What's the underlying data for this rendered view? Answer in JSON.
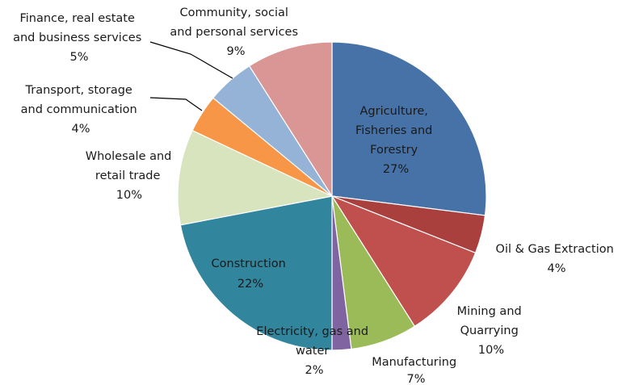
{
  "chart_data": {
    "type": "pie",
    "title": "",
    "slices": [
      {
        "label": "Agriculture, Fisheries and Forestry",
        "value": 27,
        "text": "27%",
        "color": "#4672A8"
      },
      {
        "label": "Oil & Gas Extraction",
        "value": 4,
        "text": "4%",
        "color": "#A9403E"
      },
      {
        "label": "Mining and Quarrying",
        "value": 10,
        "text": "10%",
        "color": "#C0504D"
      },
      {
        "label": "Manufacturing",
        "value": 7,
        "text": "7%",
        "color": "#9BBB59"
      },
      {
        "label": "Electricity, gas and water",
        "value": 2,
        "text": "2%",
        "color": "#8064A2"
      },
      {
        "label": "Construction",
        "value": 22,
        "text": "22%",
        "color": "#31859C"
      },
      {
        "label": "Wholesale and retail trade",
        "value": 10,
        "text": "10%",
        "color": "#D7E4BD"
      },
      {
        "label": "Transport, storage and communication",
        "value": 4,
        "text": "4%",
        "color": "#F79646"
      },
      {
        "label": "Finance, real estate and business services",
        "value": 5,
        "text": "5%",
        "color": "#95B3D7"
      },
      {
        "label": "Community, social and personal services",
        "value": 9,
        "text": "9%",
        "color": "#D99694"
      }
    ]
  },
  "labels": {
    "agriculture": [
      "Agriculture,",
      "Fisheries and",
      "Forestry",
      "27%"
    ],
    "oil_gas": [
      "Oil & Gas Extraction",
      "4%"
    ],
    "mining": [
      "Mining and",
      "Quarrying",
      "10%"
    ],
    "manufacturing": [
      "Manufacturing",
      "7%"
    ],
    "electricity": [
      "Electricity, gas and",
      "water",
      "2%"
    ],
    "construction": [
      "Construction",
      "22%"
    ],
    "wholesale": [
      "Wholesale and",
      "retail trade",
      "10%"
    ],
    "transport": [
      "Transport, storage",
      "and communication",
      "4%"
    ],
    "finance": [
      "Finance, real estate",
      "and business services",
      "5%"
    ],
    "community": [
      "Community, social",
      "and personal services",
      "9%"
    ]
  }
}
